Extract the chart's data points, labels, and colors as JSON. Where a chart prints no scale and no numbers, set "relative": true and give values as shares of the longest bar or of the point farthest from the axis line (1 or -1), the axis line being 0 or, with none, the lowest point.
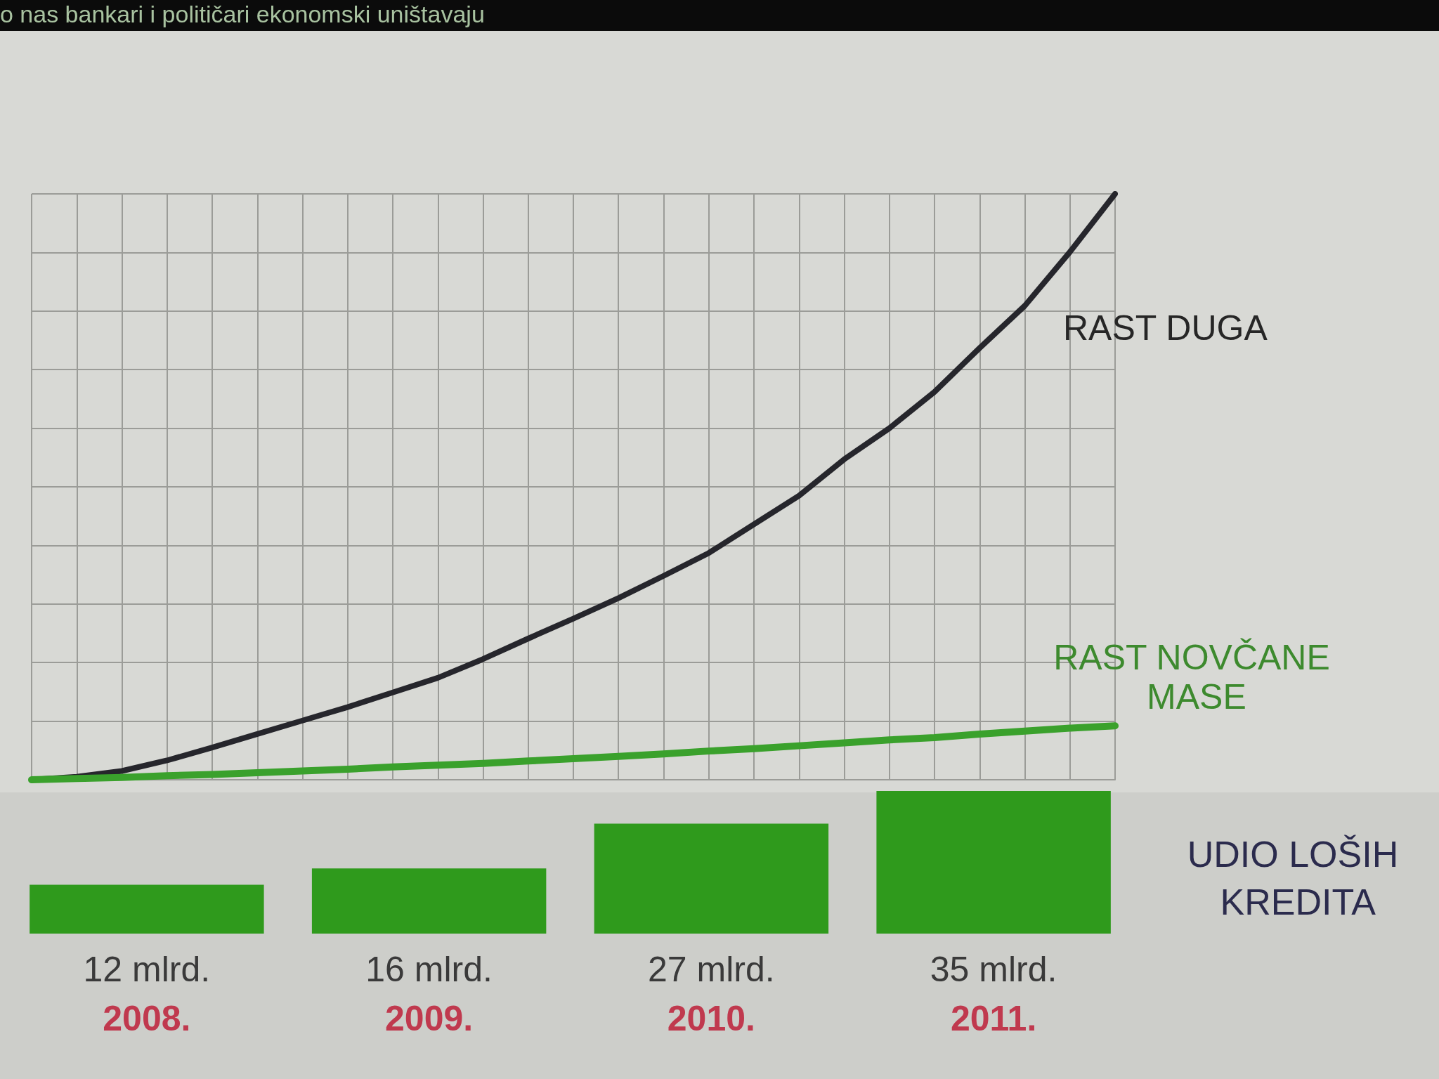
{
  "chart_data": [
    {
      "type": "line",
      "annotations": [
        "o nas bankari i političari ekonomski uništavaju"
      ],
      "categories": [
        null,
        null,
        null,
        null,
        null,
        null,
        null,
        null,
        null,
        null,
        null,
        null,
        null,
        null,
        null,
        null,
        null,
        null,
        null,
        null,
        null,
        null,
        null,
        null,
        null
      ],
      "relative": true,
      "series": [
        {
          "name": "RAST DUGA",
          "color": "#26262c",
          "values": [
            0,
            0.005,
            0.015,
            0.033,
            0.055,
            0.078,
            0.101,
            0.124,
            0.149,
            0.174,
            0.206,
            0.241,
            0.275,
            0.31,
            0.348,
            0.387,
            0.436,
            0.485,
            0.547,
            0.6,
            0.662,
            0.737,
            0.809,
            0.901,
            1
          ]
        },
        {
          "name": "RAST NOVČANE MASE",
          "color": "#3aa12c",
          "values": [
            0,
            0.002,
            0.004,
            0.007,
            0.009,
            0.012,
            0.015,
            0.018,
            0.022,
            0.025,
            0.028,
            0.032,
            0.036,
            0.04,
            0.044,
            0.049,
            0.053,
            0.058,
            0.063,
            0.068,
            0.072,
            0.078,
            0.083,
            0.088,
            0.092
          ]
        }
      ],
      "grid": true,
      "marker": "none",
      "tick_labels": false
    },
    {
      "type": "bar",
      "categories": [
        "2008.",
        "2009.",
        "2010.",
        "2011."
      ],
      "series": [
        {
          "name": "UDIO LOŠIH KREDITA",
          "color": "#2f9a1c",
          "values": [
            12,
            16,
            27,
            35
          ],
          "value_labels": [
            "12 mlrd.",
            "16 mlrd.",
            "27 mlrd.",
            "35 mlrd."
          ]
        }
      ],
      "tick_labels": "x"
    }
  ]
}
